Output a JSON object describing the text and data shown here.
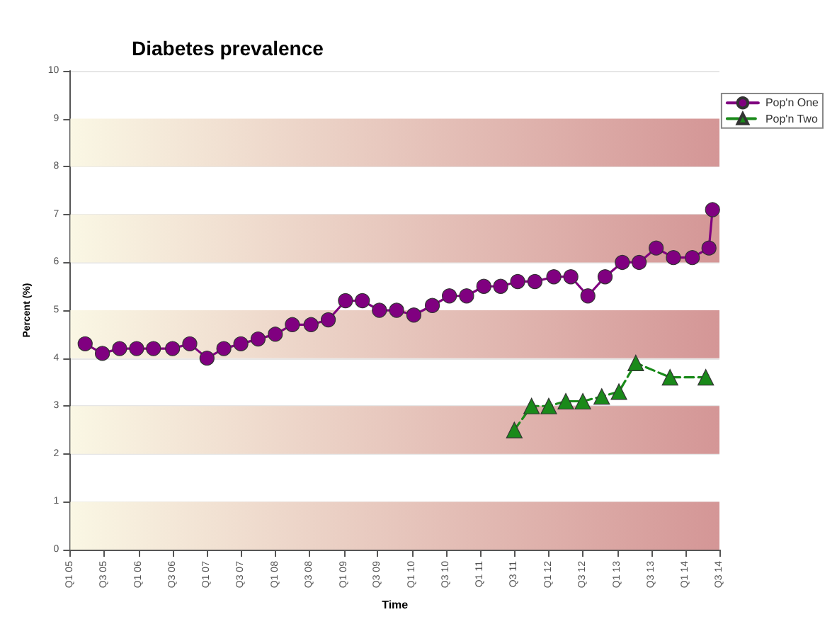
{
  "chart_data": {
    "type": "line",
    "title": "Diabetes prevalence",
    "xlabel": "Time",
    "ylabel": "Percent (%)",
    "xlim": [
      "2005-01-01",
      "2014-07-01"
    ],
    "ylim": [
      0,
      10
    ],
    "yticks": [
      0,
      1,
      2,
      3,
      4,
      5,
      6,
      7,
      8,
      9,
      10
    ],
    "xticks": [
      {
        "value": "2005-01",
        "label": "Q1 05"
      },
      {
        "value": "2005-07",
        "label": "Q3 05"
      },
      {
        "value": "2006-01",
        "label": "Q1 06"
      },
      {
        "value": "2006-07",
        "label": "Q3 06"
      },
      {
        "value": "2007-01",
        "label": "Q1 07"
      },
      {
        "value": "2007-07",
        "label": "Q3 07"
      },
      {
        "value": "2008-01",
        "label": "Q1 08"
      },
      {
        "value": "2008-07",
        "label": "Q3 08"
      },
      {
        "value": "2009-01",
        "label": "Q1 09"
      },
      {
        "value": "2009-07",
        "label": "Q3 09"
      },
      {
        "value": "2010-01",
        "label": "Q1 10"
      },
      {
        "value": "2010-07",
        "label": "Q3 10"
      },
      {
        "value": "2011-01",
        "label": "Q1 11"
      },
      {
        "value": "2011-07",
        "label": "Q3 11"
      },
      {
        "value": "2012-01",
        "label": "Q1 12"
      },
      {
        "value": "2012-07",
        "label": "Q3 12"
      },
      {
        "value": "2013-01",
        "label": "Q1 13"
      },
      {
        "value": "2013-07",
        "label": "Q3 13"
      },
      {
        "value": "2014-01",
        "label": "Q1 14"
      },
      {
        "value": "2014-07",
        "label": "Q3 14"
      }
    ],
    "series": [
      {
        "name": "Pop'n One",
        "color": "#800080",
        "marker": "circle",
        "line_style": "solid",
        "x": [
          "2005-03-21",
          "2005-06-21",
          "2005-09-21",
          "2005-12-21",
          "2006-03-21",
          "2006-07-01",
          "2006-10-01",
          "2007-01-01",
          "2007-04-01",
          "2007-07-01",
          "2007-10-01",
          "2008-01-01",
          "2008-04-01",
          "2008-07-10",
          "2008-10-10",
          "2009-01-10",
          "2009-04-10",
          "2009-07-10",
          "2009-10-10",
          "2010-01-10",
          "2010-04-19",
          "2010-07-19",
          "2010-10-19",
          "2011-01-19",
          "2011-04-19",
          "2011-07-19",
          "2011-10-19",
          "2012-01-28",
          "2012-04-28",
          "2012-07-28",
          "2012-10-28",
          "2013-01-28",
          "2013-04-28",
          "2013-07-28",
          "2013-10-28",
          "2014-02-06",
          "2014-05-06",
          "2014-05-25"
        ],
        "values": [
          4.3,
          4.1,
          4.2,
          4.2,
          4.2,
          4.2,
          4.3,
          4.0,
          4.2,
          4.3,
          4.4,
          4.5,
          4.7,
          4.7,
          4.8,
          5.2,
          5.2,
          5.0,
          5.0,
          4.9,
          5.1,
          5.3,
          5.3,
          5.5,
          5.5,
          5.6,
          5.6,
          5.7,
          5.7,
          5.3,
          5.7,
          6.0,
          6.0,
          6.3,
          6.1,
          6.1,
          6.3,
          7.1
        ]
      },
      {
        "name": "Pop'n Two",
        "color": "#1a8a1a",
        "marker": "triangle",
        "line_style": "dashed",
        "x": [
          "2011-07-01",
          "2011-10-01",
          "2012-01-01",
          "2012-04-01",
          "2012-07-01",
          "2012-10-10",
          "2013-01-10",
          "2013-04-10",
          "2013-10-10",
          "2014-04-19"
        ],
        "values": [
          2.5,
          3.0,
          3.0,
          3.1,
          3.1,
          3.2,
          3.3,
          3.9,
          3.6,
          3.6
        ]
      }
    ],
    "bands": [
      {
        "axis": "y",
        "from": 0,
        "to": 1,
        "color": "#d49696"
      },
      {
        "axis": "y",
        "from": 2,
        "to": 3,
        "color": "#d49696"
      },
      {
        "axis": "y",
        "from": 4,
        "to": 5,
        "color": "#d49696"
      },
      {
        "axis": "y",
        "from": 6,
        "to": 7,
        "color": "#d49696"
      },
      {
        "axis": "y",
        "from": 8,
        "to": 9,
        "color": "#d49696"
      }
    ],
    "grid": "y",
    "legend": "top right"
  }
}
